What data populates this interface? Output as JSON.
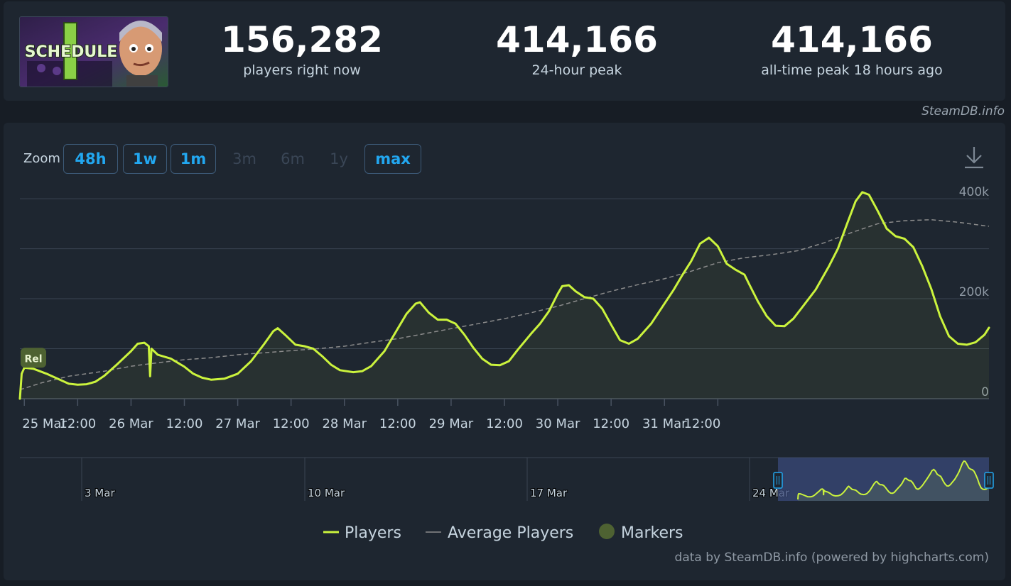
{
  "header": {
    "game_logo_text": "SCHEDULE",
    "game_logo_numeral": "I",
    "stats": [
      {
        "value": "156,282",
        "label": "players right now"
      },
      {
        "value": "414,166",
        "label": "24-hour peak"
      },
      {
        "value": "414,166",
        "label": "all-time peak 18 hours ago"
      }
    ],
    "credit": "SteamDB.info"
  },
  "zoom": {
    "label": "Zoom",
    "buttons": [
      {
        "label": "48h",
        "enabled": true
      },
      {
        "label": "1w",
        "enabled": true
      },
      {
        "label": "1m",
        "enabled": true
      },
      {
        "label": "3m",
        "enabled": false
      },
      {
        "label": "6m",
        "enabled": false
      },
      {
        "label": "1y",
        "enabled": false
      },
      {
        "label": "max",
        "enabled": true
      }
    ]
  },
  "colors": {
    "players": "#cbf33d",
    "average": "#8c8c8c",
    "markers": "#4e6232",
    "navigator_selection": "#3a4a7a",
    "accent": "#22a7f0"
  },
  "chart_data": {
    "type": "line",
    "x_unit": "hours since 25 Mar 00:00",
    "x_ticks": [
      "25 Mar",
      "12:00",
      "26 Mar",
      "12:00",
      "27 Mar",
      "12:00",
      "28 Mar",
      "12:00",
      "29 Mar",
      "12:00",
      "30 Mar",
      "12:00",
      "31 Mar",
      "12:00"
    ],
    "y_ticks": [
      "0",
      "200k",
      "400k"
    ],
    "ylim": [
      0,
      420000
    ],
    "marker_label": "Rel",
    "series": [
      {
        "name": "Players",
        "points": [
          [
            -1,
            0
          ],
          [
            -0.6,
            50000
          ],
          [
            0,
            62000
          ],
          [
            2,
            60000
          ],
          [
            5,
            50000
          ],
          [
            8,
            38000
          ],
          [
            10,
            30000
          ],
          [
            12,
            28000
          ],
          [
            14,
            29000
          ],
          [
            16,
            34000
          ],
          [
            18,
            46000
          ],
          [
            21,
            70000
          ],
          [
            24,
            95000
          ],
          [
            25.5,
            110000
          ],
          [
            27,
            112000
          ],
          [
            28,
            105000
          ],
          [
            28.3,
            45000
          ],
          [
            28.6,
            100000
          ],
          [
            30,
            88000
          ],
          [
            33,
            80000
          ],
          [
            36,
            64000
          ],
          [
            38,
            50000
          ],
          [
            40,
            42000
          ],
          [
            42,
            38000
          ],
          [
            45,
            40000
          ],
          [
            48,
            50000
          ],
          [
            51,
            75000
          ],
          [
            54,
            110000
          ],
          [
            56,
            135000
          ],
          [
            57,
            141000
          ],
          [
            59,
            125000
          ],
          [
            61,
            108000
          ],
          [
            63,
            105000
          ],
          [
            65,
            100000
          ],
          [
            67,
            85000
          ],
          [
            69,
            68000
          ],
          [
            71,
            57000
          ],
          [
            74,
            53000
          ],
          [
            76,
            55000
          ],
          [
            78,
            65000
          ],
          [
            81,
            95000
          ],
          [
            84,
            140000
          ],
          [
            86,
            170000
          ],
          [
            88,
            190000
          ],
          [
            89,
            193000
          ],
          [
            91,
            172000
          ],
          [
            93,
            158000
          ],
          [
            95,
            158000
          ],
          [
            97,
            150000
          ],
          [
            99,
            128000
          ],
          [
            101,
            102000
          ],
          [
            103,
            80000
          ],
          [
            105,
            68000
          ],
          [
            107,
            67000
          ],
          [
            109,
            75000
          ],
          [
            111,
            98000
          ],
          [
            114,
            130000
          ],
          [
            116,
            150000
          ],
          [
            118,
            175000
          ],
          [
            120,
            210000
          ],
          [
            121,
            225000
          ],
          [
            122.5,
            227000
          ],
          [
            124,
            215000
          ],
          [
            126,
            203000
          ],
          [
            128,
            200000
          ],
          [
            130,
            180000
          ],
          [
            132,
            148000
          ],
          [
            134,
            117000
          ],
          [
            136,
            110000
          ],
          [
            138,
            120000
          ],
          [
            141,
            150000
          ],
          [
            144,
            190000
          ],
          [
            146,
            217000
          ],
          [
            148,
            247000
          ],
          [
            150,
            275000
          ],
          [
            152,
            310000
          ],
          [
            154,
            322000
          ],
          [
            156,
            305000
          ],
          [
            158,
            270000
          ],
          [
            160,
            258000
          ],
          [
            162,
            248000
          ],
          [
            163,
            230000
          ],
          [
            165,
            195000
          ],
          [
            167,
            165000
          ],
          [
            169,
            146000
          ],
          [
            171,
            145000
          ],
          [
            173,
            160000
          ],
          [
            175,
            183000
          ],
          [
            178,
            218000
          ],
          [
            181,
            265000
          ],
          [
            183,
            300000
          ],
          [
            185,
            348000
          ],
          [
            187,
            395000
          ],
          [
            188.5,
            413000
          ],
          [
            190,
            408000
          ],
          [
            192,
            375000
          ],
          [
            194,
            340000
          ],
          [
            196,
            325000
          ],
          [
            198,
            320000
          ],
          [
            200,
            303000
          ],
          [
            202,
            265000
          ],
          [
            204,
            220000
          ],
          [
            206,
            165000
          ],
          [
            208,
            125000
          ],
          [
            210,
            110000
          ],
          [
            212,
            108000
          ],
          [
            214,
            113000
          ],
          [
            216,
            128000
          ],
          [
            217,
            142000
          ]
        ]
      },
      {
        "name": "Average Players",
        "points": [
          [
            -1,
            18000
          ],
          [
            4,
            32000
          ],
          [
            10,
            45000
          ],
          [
            18,
            55000
          ],
          [
            24,
            65000
          ],
          [
            30,
            72000
          ],
          [
            36,
            78000
          ],
          [
            42,
            82000
          ],
          [
            48,
            88000
          ],
          [
            54,
            92000
          ],
          [
            60,
            96000
          ],
          [
            66,
            100000
          ],
          [
            72,
            105000
          ],
          [
            78,
            113000
          ],
          [
            84,
            120000
          ],
          [
            90,
            130000
          ],
          [
            96,
            140000
          ],
          [
            102,
            150000
          ],
          [
            108,
            160000
          ],
          [
            114,
            172000
          ],
          [
            120,
            185000
          ],
          [
            126,
            200000
          ],
          [
            132,
            215000
          ],
          [
            138,
            228000
          ],
          [
            144,
            240000
          ],
          [
            150,
            255000
          ],
          [
            156,
            272000
          ],
          [
            162,
            282000
          ],
          [
            168,
            288000
          ],
          [
            174,
            296000
          ],
          [
            180,
            312000
          ],
          [
            186,
            332000
          ],
          [
            192,
            350000
          ],
          [
            198,
            356000
          ],
          [
            204,
            358000
          ],
          [
            210,
            353000
          ],
          [
            216,
            346000
          ],
          [
            217,
            345000
          ]
        ]
      }
    ],
    "navigator": {
      "x_ticks": [
        "3 Mar",
        "10 Mar",
        "17 Mar",
        "24 Mar"
      ],
      "selection": "24 Mar – 31 Mar"
    },
    "legend": [
      {
        "label": "Players",
        "symbol": "line"
      },
      {
        "label": "Average Players",
        "symbol": "dashed-line"
      },
      {
        "label": "Markers",
        "symbol": "circle"
      }
    ],
    "legend_position": "bottom-center",
    "credits": "data by SteamDB.info (powered by highcharts.com)"
  }
}
